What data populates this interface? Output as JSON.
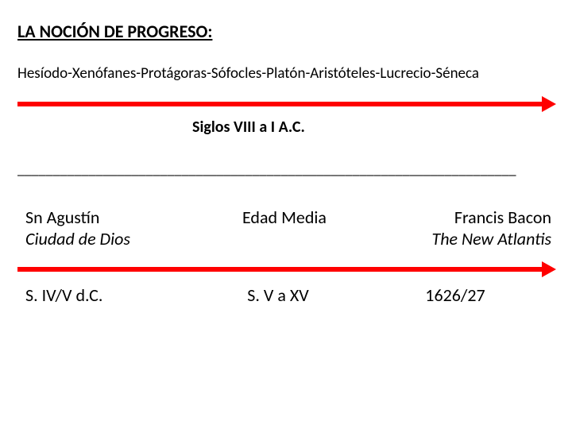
{
  "colors": {
    "text": "#000000",
    "background": "#ffffff",
    "arrow": "#ff0000"
  },
  "title": "LA NOCIÓN DE PROGRESO:",
  "philosophers": "Hesíodo-Xenófanes-Protágoras-Sófocles-Platón-Aristóteles-Lucrecio-Séneca",
  "period1": "Siglos VIII a I A.C.",
  "divider": "______________________________________________________________________",
  "section2": {
    "left": {
      "name": "Sn Agustín",
      "work": "Ciudad de Dios",
      "date": "S. IV/V d.C."
    },
    "mid": {
      "name": "Edad Media",
      "work": "",
      "date": "S. V a XV"
    },
    "right": {
      "name": "Francis Bacon",
      "work": "The New Atlantis",
      "date": "1626/27"
    }
  },
  "style": {
    "title_fontsize": 22,
    "body_fontsize": 19,
    "label_fontsize": 22,
    "arrow_thickness": 6,
    "arrow_head_size": 10
  }
}
